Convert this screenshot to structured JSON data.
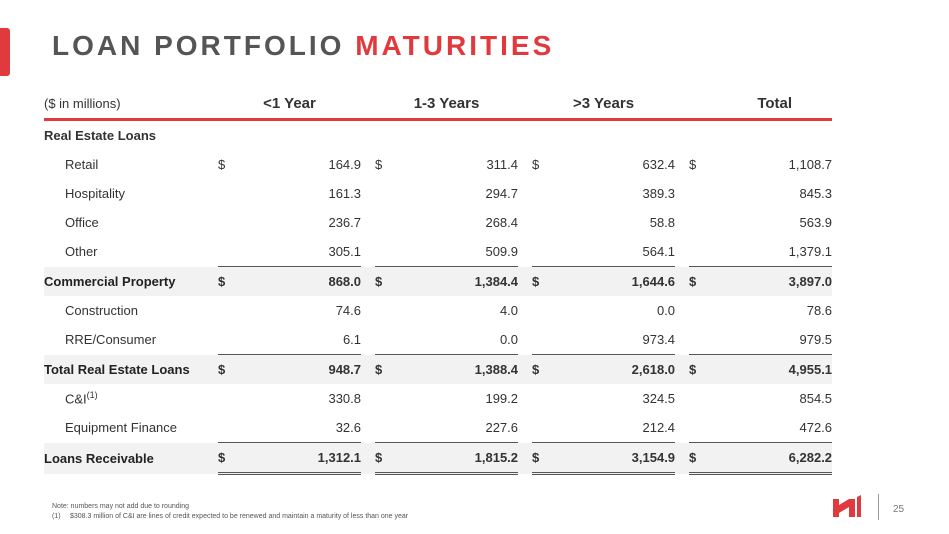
{
  "title": {
    "part1": "LOAN PORTFOLIO",
    "part2": "MATURITIES"
  },
  "table": {
    "unit_label": "($ in millions)",
    "columns": [
      "<1 Year",
      "1-3 Years",
      ">3 Years",
      "Total"
    ],
    "section_label": "Real Estate Loans",
    "rows": [
      {
        "label": "Retail",
        "indent": true,
        "dollar": true,
        "values": [
          "164.9",
          "311.4",
          "632.4",
          "1,108.7"
        ]
      },
      {
        "label": "Hospitality",
        "indent": true,
        "values": [
          "161.3",
          "294.7",
          "389.3",
          "845.3"
        ]
      },
      {
        "label": "Office",
        "indent": true,
        "values": [
          "236.7",
          "268.4",
          "58.8",
          "563.9"
        ]
      },
      {
        "label": "Other",
        "indent": true,
        "values": [
          "305.1",
          "509.9",
          "564.1",
          "1,379.1"
        ]
      },
      {
        "label": "Commercial Property",
        "subtotal": true,
        "dollar": true,
        "values": [
          "868.0",
          "1,384.4",
          "1,644.6",
          "3,897.0"
        ]
      },
      {
        "label": "Construction",
        "indent": true,
        "values": [
          "74.6",
          "4.0",
          "0.0",
          "78.6"
        ]
      },
      {
        "label": "RRE/Consumer",
        "indent": true,
        "values": [
          "6.1",
          "0.0",
          "973.4",
          "979.5"
        ]
      },
      {
        "label": "Total Real Estate Loans",
        "subtotal": true,
        "dollar": true,
        "values": [
          "948.7",
          "1,388.4",
          "2,618.0",
          "4,955.1"
        ]
      },
      {
        "label": "C&I",
        "sup": "(1)",
        "indent": true,
        "values": [
          "330.8",
          "199.2",
          "324.5",
          "854.5"
        ]
      },
      {
        "label": "Equipment Finance",
        "indent": true,
        "values": [
          "32.6",
          "227.6",
          "212.4",
          "472.6"
        ]
      },
      {
        "label": "Loans Receivable",
        "subtotal": true,
        "final": true,
        "dollar": true,
        "values": [
          "1,312.1",
          "1,815.2",
          "3,154.9",
          "6,282.2"
        ]
      }
    ],
    "dollar_sign": "$"
  },
  "notes": {
    "line1": "Note: numbers may not add due to rounding",
    "line2_mark": "(1)",
    "line2_text": "$308.3 million of C&I are lines of credit expected to be renewed and maintain a maturity of less than one year"
  },
  "footer": {
    "page_number": "25",
    "logo_icon": "hanmi-logo-icon",
    "accent_color": "#e03a3e"
  }
}
